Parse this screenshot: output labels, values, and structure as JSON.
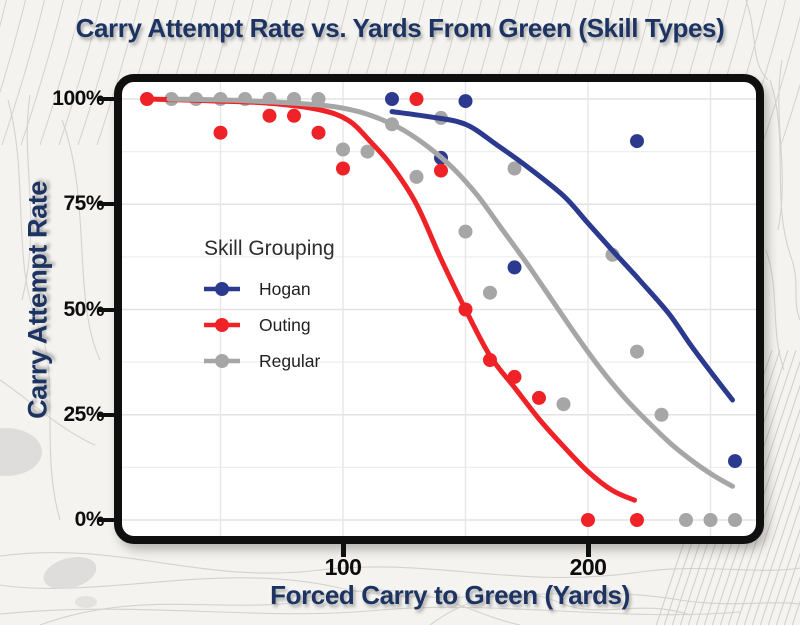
{
  "chart_data": {
    "type": "scatter",
    "title": "Carry Attempt Rate vs. Yards From Green (Skill Types)",
    "xlabel": "Forced Carry to Green (Yards)",
    "ylabel": "Carry Attempt Rate",
    "x_range_yards": [
      10,
      268
    ],
    "y_range_pct": [
      -4,
      104
    ],
    "grid": "on",
    "x_ticks": {
      "values": [
        100,
        200
      ],
      "labels": [
        "100",
        "200"
      ]
    },
    "y_ticks": {
      "values": [
        0,
        25,
        50,
        75,
        100
      ],
      "labels": [
        "0%",
        "25%",
        "50%",
        "75%",
        "100%"
      ]
    },
    "x_gridlines": [
      50,
      100,
      150,
      200,
      250
    ],
    "y_gridlines_major": [
      0,
      25,
      50,
      75,
      100
    ],
    "y_gridlines_minor": [
      12.5,
      37.5,
      62.5,
      87.5
    ],
    "legend": {
      "title": "Skill Grouping",
      "position": "inside-left"
    },
    "series": [
      {
        "name": "Hogan",
        "color": "#2b3a8f",
        "points": [
          [
            120,
            100
          ],
          [
            140,
            86
          ],
          [
            150,
            99.5
          ],
          [
            170,
            60
          ],
          [
            220,
            90
          ],
          [
            260,
            14
          ]
        ],
        "trend": [
          [
            120,
            97
          ],
          [
            135,
            95.8
          ],
          [
            150,
            94
          ],
          [
            163,
            89
          ],
          [
            175,
            84
          ],
          [
            190,
            77
          ],
          [
            200,
            70.5
          ],
          [
            210,
            64
          ],
          [
            221,
            57
          ],
          [
            233,
            49
          ],
          [
            242,
            41.5
          ],
          [
            251,
            34.5
          ],
          [
            259,
            28.5
          ]
        ]
      },
      {
        "name": "Outing",
        "color": "#ee2227",
        "points": [
          [
            20,
            100
          ],
          [
            50,
            92
          ],
          [
            70,
            96
          ],
          [
            80,
            96
          ],
          [
            90,
            92
          ],
          [
            100,
            83.5
          ],
          [
            130,
            100
          ],
          [
            140,
            83
          ],
          [
            150,
            50
          ],
          [
            160,
            38
          ],
          [
            170,
            34
          ],
          [
            180,
            29
          ],
          [
            200,
            0
          ],
          [
            220,
            0
          ]
        ],
        "trend": [
          [
            20,
            100
          ],
          [
            45,
            99.6
          ],
          [
            70,
            99
          ],
          [
            90,
            97.5
          ],
          [
            102,
            95
          ],
          [
            111,
            90
          ],
          [
            120,
            84
          ],
          [
            130,
            75
          ],
          [
            140,
            62
          ],
          [
            150,
            50
          ],
          [
            160,
            39
          ],
          [
            170,
            31.5
          ],
          [
            180,
            24
          ],
          [
            190,
            17.5
          ],
          [
            200,
            11.5
          ],
          [
            210,
            7
          ],
          [
            219,
            4.7
          ]
        ]
      },
      {
        "name": "Regular",
        "color": "#a6a6a6",
        "points": [
          [
            30,
            100
          ],
          [
            40,
            100
          ],
          [
            50,
            100
          ],
          [
            60,
            100
          ],
          [
            70,
            100
          ],
          [
            80,
            100
          ],
          [
            90,
            100
          ],
          [
            100,
            88
          ],
          [
            110,
            87.5
          ],
          [
            120,
            94
          ],
          [
            130,
            81.5
          ],
          [
            140,
            95.5
          ],
          [
            150,
            68.5
          ],
          [
            160,
            54
          ],
          [
            170,
            83.5
          ],
          [
            190,
            27.5
          ],
          [
            210,
            63
          ],
          [
            220,
            40
          ],
          [
            230,
            25
          ],
          [
            240,
            0
          ],
          [
            250,
            0
          ],
          [
            260,
            0
          ]
        ],
        "trend": [
          [
            29,
            100
          ],
          [
            60,
            99.6
          ],
          [
            90,
            98.6
          ],
          [
            105,
            97.2
          ],
          [
            115,
            95.3
          ],
          [
            125,
            92.5
          ],
          [
            135,
            88.5
          ],
          [
            145,
            83.5
          ],
          [
            155,
            77
          ],
          [
            165,
            69
          ],
          [
            175,
            61
          ],
          [
            185,
            52.5
          ],
          [
            195,
            44
          ],
          [
            205,
            36
          ],
          [
            215,
            29
          ],
          [
            225,
            23
          ],
          [
            235,
            17.5
          ],
          [
            245,
            13
          ],
          [
            252,
            10.3
          ],
          [
            259,
            8
          ]
        ]
      }
    ],
    "colors": {
      "title_text": "#1d3361",
      "tick_text": "#0d0d0d",
      "panel_border": "#0f0f0f",
      "panel_bg": "#ffffff",
      "page_bg": "#f4f3ef",
      "contour_lines": "#d3d2ce"
    }
  }
}
